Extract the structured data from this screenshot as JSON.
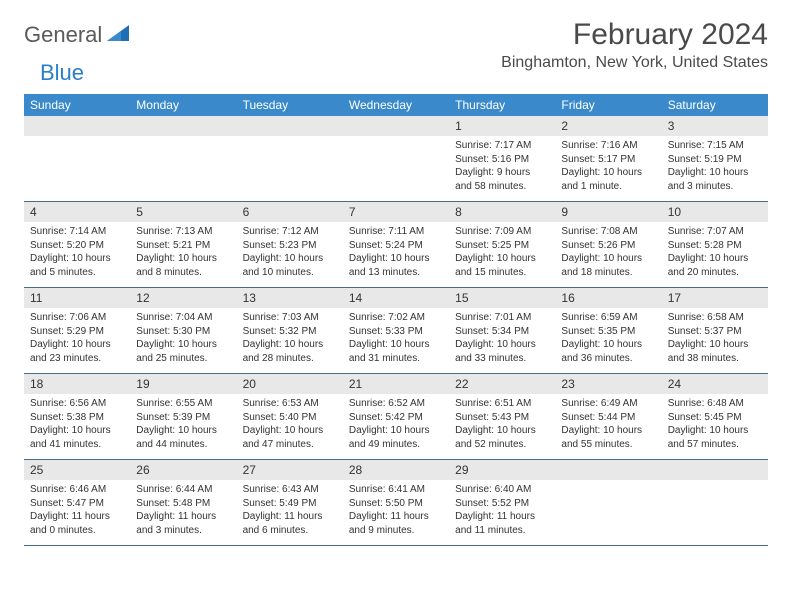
{
  "brand": {
    "part1": "General",
    "part2": "Blue"
  },
  "title": "February 2024",
  "location": "Binghamton, New York, United States",
  "colors": {
    "header_bg": "#3a8acb",
    "day_header_bg": "#e8e8e8",
    "divider": "#4a6a85",
    "brand_gray": "#5a5a5a",
    "brand_blue": "#2a7fc9"
  },
  "weekdays": [
    "Sunday",
    "Monday",
    "Tuesday",
    "Wednesday",
    "Thursday",
    "Friday",
    "Saturday"
  ],
  "weeks": [
    [
      {
        "n": "",
        "lines": [
          "",
          "",
          "",
          ""
        ]
      },
      {
        "n": "",
        "lines": [
          "",
          "",
          "",
          ""
        ]
      },
      {
        "n": "",
        "lines": [
          "",
          "",
          "",
          ""
        ]
      },
      {
        "n": "",
        "lines": [
          "",
          "",
          "",
          ""
        ]
      },
      {
        "n": "1",
        "lines": [
          "Sunrise: 7:17 AM",
          "Sunset: 5:16 PM",
          "Daylight: 9 hours",
          "and 58 minutes."
        ]
      },
      {
        "n": "2",
        "lines": [
          "Sunrise: 7:16 AM",
          "Sunset: 5:17 PM",
          "Daylight: 10 hours",
          "and 1 minute."
        ]
      },
      {
        "n": "3",
        "lines": [
          "Sunrise: 7:15 AM",
          "Sunset: 5:19 PM",
          "Daylight: 10 hours",
          "and 3 minutes."
        ]
      }
    ],
    [
      {
        "n": "4",
        "lines": [
          "Sunrise: 7:14 AM",
          "Sunset: 5:20 PM",
          "Daylight: 10 hours",
          "and 5 minutes."
        ]
      },
      {
        "n": "5",
        "lines": [
          "Sunrise: 7:13 AM",
          "Sunset: 5:21 PM",
          "Daylight: 10 hours",
          "and 8 minutes."
        ]
      },
      {
        "n": "6",
        "lines": [
          "Sunrise: 7:12 AM",
          "Sunset: 5:23 PM",
          "Daylight: 10 hours",
          "and 10 minutes."
        ]
      },
      {
        "n": "7",
        "lines": [
          "Sunrise: 7:11 AM",
          "Sunset: 5:24 PM",
          "Daylight: 10 hours",
          "and 13 minutes."
        ]
      },
      {
        "n": "8",
        "lines": [
          "Sunrise: 7:09 AM",
          "Sunset: 5:25 PM",
          "Daylight: 10 hours",
          "and 15 minutes."
        ]
      },
      {
        "n": "9",
        "lines": [
          "Sunrise: 7:08 AM",
          "Sunset: 5:26 PM",
          "Daylight: 10 hours",
          "and 18 minutes."
        ]
      },
      {
        "n": "10",
        "lines": [
          "Sunrise: 7:07 AM",
          "Sunset: 5:28 PM",
          "Daylight: 10 hours",
          "and 20 minutes."
        ]
      }
    ],
    [
      {
        "n": "11",
        "lines": [
          "Sunrise: 7:06 AM",
          "Sunset: 5:29 PM",
          "Daylight: 10 hours",
          "and 23 minutes."
        ]
      },
      {
        "n": "12",
        "lines": [
          "Sunrise: 7:04 AM",
          "Sunset: 5:30 PM",
          "Daylight: 10 hours",
          "and 25 minutes."
        ]
      },
      {
        "n": "13",
        "lines": [
          "Sunrise: 7:03 AM",
          "Sunset: 5:32 PM",
          "Daylight: 10 hours",
          "and 28 minutes."
        ]
      },
      {
        "n": "14",
        "lines": [
          "Sunrise: 7:02 AM",
          "Sunset: 5:33 PM",
          "Daylight: 10 hours",
          "and 31 minutes."
        ]
      },
      {
        "n": "15",
        "lines": [
          "Sunrise: 7:01 AM",
          "Sunset: 5:34 PM",
          "Daylight: 10 hours",
          "and 33 minutes."
        ]
      },
      {
        "n": "16",
        "lines": [
          "Sunrise: 6:59 AM",
          "Sunset: 5:35 PM",
          "Daylight: 10 hours",
          "and 36 minutes."
        ]
      },
      {
        "n": "17",
        "lines": [
          "Sunrise: 6:58 AM",
          "Sunset: 5:37 PM",
          "Daylight: 10 hours",
          "and 38 minutes."
        ]
      }
    ],
    [
      {
        "n": "18",
        "lines": [
          "Sunrise: 6:56 AM",
          "Sunset: 5:38 PM",
          "Daylight: 10 hours",
          "and 41 minutes."
        ]
      },
      {
        "n": "19",
        "lines": [
          "Sunrise: 6:55 AM",
          "Sunset: 5:39 PM",
          "Daylight: 10 hours",
          "and 44 minutes."
        ]
      },
      {
        "n": "20",
        "lines": [
          "Sunrise: 6:53 AM",
          "Sunset: 5:40 PM",
          "Daylight: 10 hours",
          "and 47 minutes."
        ]
      },
      {
        "n": "21",
        "lines": [
          "Sunrise: 6:52 AM",
          "Sunset: 5:42 PM",
          "Daylight: 10 hours",
          "and 49 minutes."
        ]
      },
      {
        "n": "22",
        "lines": [
          "Sunrise: 6:51 AM",
          "Sunset: 5:43 PM",
          "Daylight: 10 hours",
          "and 52 minutes."
        ]
      },
      {
        "n": "23",
        "lines": [
          "Sunrise: 6:49 AM",
          "Sunset: 5:44 PM",
          "Daylight: 10 hours",
          "and 55 minutes."
        ]
      },
      {
        "n": "24",
        "lines": [
          "Sunrise: 6:48 AM",
          "Sunset: 5:45 PM",
          "Daylight: 10 hours",
          "and 57 minutes."
        ]
      }
    ],
    [
      {
        "n": "25",
        "lines": [
          "Sunrise: 6:46 AM",
          "Sunset: 5:47 PM",
          "Daylight: 11 hours",
          "and 0 minutes."
        ]
      },
      {
        "n": "26",
        "lines": [
          "Sunrise: 6:44 AM",
          "Sunset: 5:48 PM",
          "Daylight: 11 hours",
          "and 3 minutes."
        ]
      },
      {
        "n": "27",
        "lines": [
          "Sunrise: 6:43 AM",
          "Sunset: 5:49 PM",
          "Daylight: 11 hours",
          "and 6 minutes."
        ]
      },
      {
        "n": "28",
        "lines": [
          "Sunrise: 6:41 AM",
          "Sunset: 5:50 PM",
          "Daylight: 11 hours",
          "and 9 minutes."
        ]
      },
      {
        "n": "29",
        "lines": [
          "Sunrise: 6:40 AM",
          "Sunset: 5:52 PM",
          "Daylight: 11 hours",
          "and 11 minutes."
        ]
      },
      {
        "n": "",
        "lines": [
          "",
          "",
          "",
          ""
        ]
      },
      {
        "n": "",
        "lines": [
          "",
          "",
          "",
          ""
        ]
      }
    ]
  ]
}
